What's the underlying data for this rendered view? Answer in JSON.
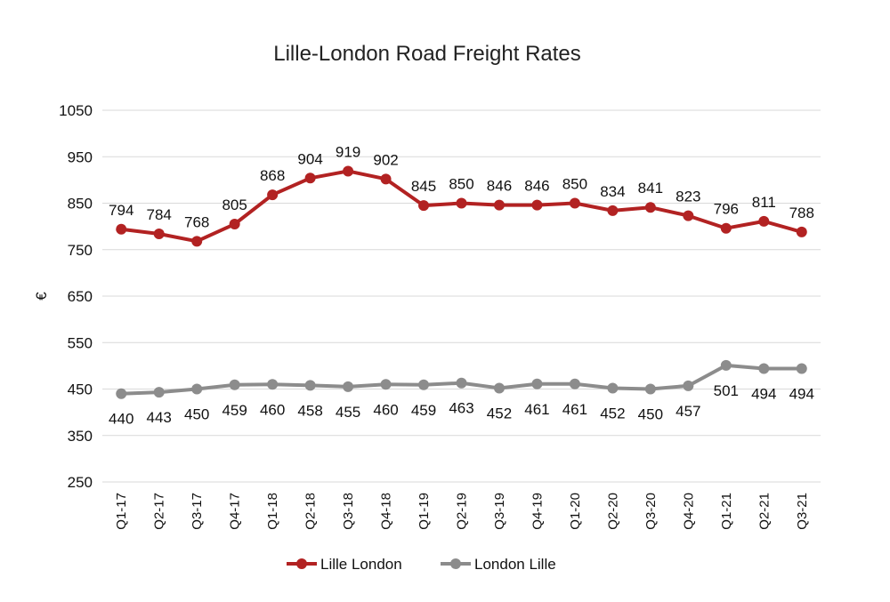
{
  "chart_data": {
    "type": "line",
    "title": "Lille-London Road Freight Rates",
    "xlabel": "",
    "ylabel": "€",
    "ylim": [
      250,
      1050
    ],
    "yticks": [
      250,
      350,
      450,
      550,
      650,
      750,
      850,
      950,
      1050
    ],
    "grid": true,
    "legend_position": "bottom",
    "categories": [
      "Q1-17",
      "Q2-17",
      "Q3-17",
      "Q4-17",
      "Q1-18",
      "Q2-18",
      "Q3-18",
      "Q4-18",
      "Q1-19",
      "Q2-19",
      "Q3-19",
      "Q4-19",
      "Q1-20",
      "Q2-20",
      "Q3-20",
      "Q4-20",
      "Q1-21",
      "Q2-21",
      "Q3-21"
    ],
    "series": [
      {
        "name": "Lille London",
        "color": "#b22222",
        "label_position": "above",
        "values": [
          794,
          784,
          768,
          805,
          868,
          904,
          919,
          902,
          845,
          850,
          846,
          846,
          850,
          834,
          841,
          823,
          796,
          811,
          788
        ]
      },
      {
        "name": "London Lille",
        "color": "#8c8c8c",
        "label_position": "below",
        "values": [
          440,
          443,
          450,
          459,
          460,
          458,
          455,
          460,
          459,
          463,
          452,
          461,
          461,
          452,
          450,
          457,
          501,
          494,
          494
        ]
      }
    ]
  }
}
